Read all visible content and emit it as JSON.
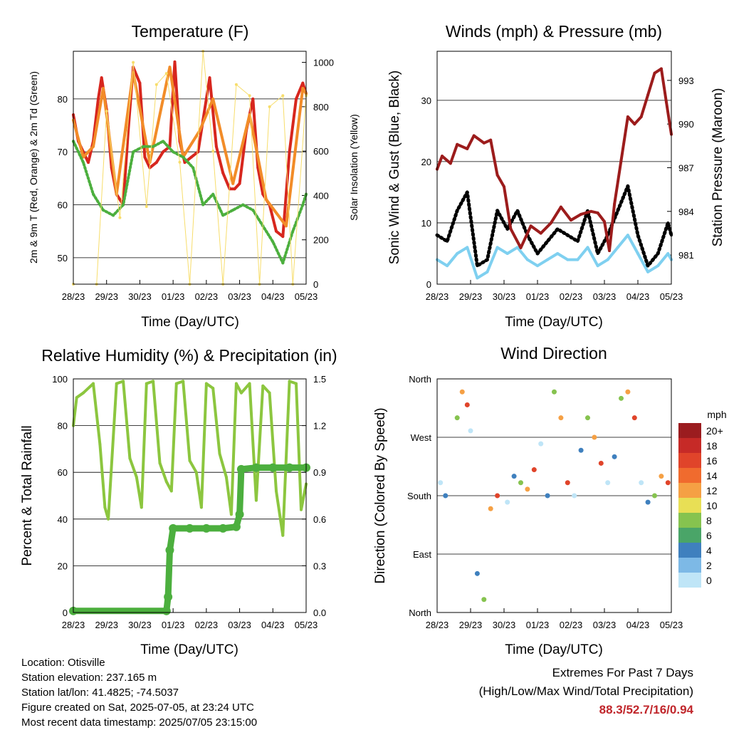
{
  "chart_data": [
    {
      "type": "line",
      "title": "Temperature (F)",
      "xlabel": "Time (Day/UTC)",
      "ylabel": "2m & 9m T (Red, Orange) & 2m Td (Green)",
      "y2label": "Solar Insolation (Yellow)",
      "xticks": [
        "28/23",
        "29/23",
        "30/23",
        "01/23",
        "02/23",
        "03/23",
        "04/23",
        "05/23"
      ],
      "ylim": [
        45,
        89
      ],
      "yticks": [
        50,
        60,
        70,
        80
      ],
      "y2lim": [
        0,
        1050
      ],
      "y2ticks": [
        0,
        200,
        400,
        600,
        800,
        1000
      ],
      "series": [
        {
          "color": "#d7261e",
          "x": [
            0,
            0.15,
            0.3,
            0.45,
            0.6,
            0.75,
            0.85,
            1.0,
            1.15,
            1.3,
            1.5,
            1.65,
            1.8,
            2.0,
            2.15,
            2.3,
            2.5,
            2.7,
            2.9,
            3.05,
            3.2,
            3.35,
            3.55,
            3.75,
            3.9,
            4.1,
            4.3,
            4.5,
            4.7,
            4.85,
            5.0,
            5.2,
            5.4,
            5.55,
            5.7,
            5.9,
            6.1,
            6.3,
            6.5,
            6.7,
            6.9,
            7.0
          ],
          "values": [
            77,
            72,
            70,
            68,
            72,
            80,
            84,
            78,
            67,
            62,
            60,
            74,
            86,
            83,
            69,
            67,
            68,
            70,
            71,
            87,
            72,
            68,
            69,
            70,
            76,
            84,
            71,
            66,
            63,
            63,
            64,
            74,
            80,
            67,
            62,
            60,
            55,
            54,
            70,
            80,
            83,
            81
          ]
        },
        {
          "color": "#f28c28",
          "x": [
            0,
            0.3,
            0.6,
            0.9,
            1.3,
            1.8,
            2.3,
            2.9,
            3.3,
            3.8,
            4.2,
            4.8,
            5.3,
            5.8,
            6.4,
            6.9,
            7.0
          ],
          "values": [
            76,
            69,
            71,
            82,
            62,
            85,
            68,
            86,
            69,
            74,
            80,
            64,
            77,
            61,
            56,
            82,
            81
          ]
        },
        {
          "color": "#4caf3e",
          "x": [
            0,
            0.3,
            0.6,
            0.9,
            1.2,
            1.5,
            1.8,
            2.1,
            2.4,
            2.7,
            3.0,
            3.3,
            3.6,
            3.9,
            4.2,
            4.5,
            4.8,
            5.1,
            5.4,
            5.7,
            6.0,
            6.3,
            6.6,
            6.9,
            7.0
          ],
          "values": [
            72,
            68,
            62,
            59,
            58,
            60,
            70,
            71,
            71,
            72,
            70,
            69,
            67,
            60,
            62,
            58,
            59,
            60,
            59,
            56,
            53,
            49,
            55,
            60,
            62
          ]
        },
        {
          "color": "#f7dd6b",
          "x": [
            0,
            0.7,
            1.0,
            1.4,
            1.8,
            2.2,
            2.5,
            2.8,
            3.2,
            3.5,
            3.9,
            4.2,
            4.5,
            4.9,
            5.3,
            5.6,
            5.9,
            6.3,
            6.6,
            7.0
          ],
          "values": [
            0,
            0,
            780,
            300,
            1000,
            350,
            900,
            950,
            550,
            0,
            1050,
            600,
            0,
            900,
            850,
            0,
            800,
            850,
            0,
            850
          ]
        }
      ]
    },
    {
      "type": "line",
      "title": "Winds (mph) & Pressure (mb)",
      "xlabel": "Time (Day/UTC)",
      "ylabel": "Sonic Wind & Gust (Blue, Black)",
      "y2label": "Station Pressure (Maroon)",
      "xticks": [
        "28/23",
        "29/23",
        "30/23",
        "01/23",
        "02/23",
        "03/23",
        "04/23",
        "05/23"
      ],
      "ylim": [
        0,
        38
      ],
      "yticks": [
        0,
        10,
        20,
        30
      ],
      "y2lim": [
        979,
        995
      ],
      "y2ticks": [
        981,
        984,
        987,
        990,
        993
      ],
      "series": [
        {
          "color": "#7fd0f0",
          "x": [
            0,
            0.3,
            0.6,
            0.9,
            1.2,
            1.5,
            1.8,
            2.1,
            2.4,
            2.7,
            3.0,
            3.3,
            3.6,
            3.9,
            4.2,
            4.5,
            4.8,
            5.1,
            5.4,
            5.7,
            6.0,
            6.3,
            6.6,
            6.9,
            7.0
          ],
          "values": [
            4,
            3,
            5,
            6,
            1,
            2,
            6,
            5,
            6,
            4,
            3,
            4,
            5,
            4,
            4,
            6,
            3,
            4,
            6,
            8,
            5,
            2,
            3,
            5,
            4
          ]
        },
        {
          "color": "#000000",
          "x": [
            0,
            0.3,
            0.6,
            0.9,
            1.2,
            1.5,
            1.8,
            2.1,
            2.4,
            2.7,
            3.0,
            3.3,
            3.6,
            3.9,
            4.2,
            4.5,
            4.8,
            5.1,
            5.4,
            5.7,
            6.0,
            6.3,
            6.6,
            6.9,
            7.0
          ],
          "values": [
            8,
            7,
            12,
            15,
            3,
            4,
            12,
            9,
            12,
            8,
            5,
            7,
            9,
            8,
            7,
            12,
            5,
            8,
            12,
            16,
            8,
            3,
            5,
            10,
            8
          ]
        },
        {
          "color": "#9c1c1c",
          "x": [
            0,
            0.15,
            0.4,
            0.6,
            0.9,
            1.1,
            1.4,
            1.6,
            1.8,
            2.0,
            2.2,
            2.5,
            2.8,
            3.1,
            3.4,
            3.7,
            4.0,
            4.3,
            4.6,
            4.8,
            5.0,
            5.15,
            5.3,
            5.5,
            5.7,
            5.9,
            6.1,
            6.3,
            6.5,
            6.7,
            6.85,
            7.0
          ],
          "values": [
            986.9,
            987.8,
            987.3,
            988.6,
            988.3,
            989.2,
            988.7,
            988.9,
            986.5,
            985.7,
            982.8,
            981.5,
            983.0,
            982.5,
            983.2,
            984.3,
            983.4,
            983.8,
            984.0,
            983.9,
            983.3,
            981.3,
            984.5,
            987.5,
            990.5,
            990.0,
            990.5,
            992.0,
            993.5,
            993.8,
            991.5,
            989.3
          ]
        }
      ]
    },
    {
      "type": "line",
      "title": "Relative Humidity (%) & Precipitation (in)",
      "xlabel": "Time (Day/UTC)",
      "ylabel": "Percent & Total Rainfall",
      "xticks": [
        "28/23",
        "29/23",
        "30/23",
        "01/23",
        "02/23",
        "03/23",
        "04/23",
        "05/23"
      ],
      "ylim": [
        0,
        100
      ],
      "yticks": [
        0,
        20,
        40,
        60,
        80,
        100
      ],
      "y2lim": [
        0,
        1.5
      ],
      "y2ticks": [
        "0.0",
        "0.3",
        "0.6",
        "0.9",
        "1.2",
        "1.5"
      ],
      "series": [
        {
          "color": "#8cc63f",
          "x": [
            0,
            0.1,
            0.3,
            0.6,
            0.8,
            0.95,
            1.05,
            1.3,
            1.5,
            1.7,
            1.9,
            2.05,
            2.2,
            2.4,
            2.6,
            2.8,
            2.95,
            3.1,
            3.3,
            3.5,
            3.7,
            3.85,
            4.0,
            4.2,
            4.4,
            4.6,
            4.75,
            4.9,
            5.05,
            5.3,
            5.5,
            5.7,
            5.9,
            6.1,
            6.3,
            6.5,
            6.7,
            6.85,
            7.0
          ],
          "values": [
            80,
            92,
            94,
            98,
            72,
            45,
            40,
            98,
            99,
            66,
            58,
            45,
            98,
            99,
            64,
            56,
            52,
            98,
            99,
            65,
            60,
            45,
            98,
            96,
            68,
            58,
            42,
            98,
            94,
            98,
            48,
            97,
            94,
            52,
            33,
            99,
            98,
            44,
            55
          ]
        },
        {
          "color": "#4caf3e",
          "x": [
            0,
            2.8,
            2.85,
            2.9,
            3.0,
            3.5,
            4.0,
            4.5,
            4.9,
            5.0,
            5.05,
            5.5,
            6.0,
            6.5,
            7.0
          ],
          "values": [
            0.01,
            0.01,
            0.1,
            0.4,
            0.54,
            0.54,
            0.54,
            0.54,
            0.55,
            0.63,
            0.92,
            0.93,
            0.93,
            0.93,
            0.93
          ]
        }
      ]
    },
    {
      "type": "scatter",
      "title": "Wind Direction",
      "xlabel": "Time (Day/UTC)",
      "ylabel": "Direction (Colored By Speed)",
      "xticks": [
        "28/23",
        "29/23",
        "30/23",
        "01/23",
        "02/23",
        "03/23",
        "04/23",
        "05/23"
      ],
      "yticks": [
        "North",
        "East",
        "South",
        "West",
        "North"
      ],
      "ylim": [
        0,
        360
      ],
      "legend": {
        "title": "mph",
        "labels": [
          "20+",
          "18",
          "16",
          "14",
          "12",
          "10",
          "8",
          "6",
          "4",
          "2",
          "0"
        ],
        "colors": [
          "#9b1c1f",
          "#c62a27",
          "#e0442a",
          "#f06b2e",
          "#f5a044",
          "#e8df55",
          "#86c34f",
          "#4aa568",
          "#3f80be",
          "#7db9e6",
          "#bfe5f7"
        ]
      },
      "points": [
        {
          "x": 0.1,
          "dir": 200
        },
        {
          "x": 0.25,
          "dir": 180
        },
        {
          "x": 0.6,
          "dir": 300
        },
        {
          "x": 0.75,
          "dir": 340
        },
        {
          "x": 0.9,
          "dir": 320
        },
        {
          "x": 1.0,
          "dir": 280
        },
        {
          "x": 1.2,
          "dir": 60
        },
        {
          "x": 1.4,
          "dir": 20
        },
        {
          "x": 1.6,
          "dir": 160
        },
        {
          "x": 1.8,
          "dir": 180
        },
        {
          "x": 2.1,
          "dir": 170
        },
        {
          "x": 2.3,
          "dir": 210
        },
        {
          "x": 2.5,
          "dir": 200
        },
        {
          "x": 2.7,
          "dir": 190
        },
        {
          "x": 2.9,
          "dir": 220
        },
        {
          "x": 3.1,
          "dir": 260
        },
        {
          "x": 3.3,
          "dir": 180
        },
        {
          "x": 3.5,
          "dir": 340
        },
        {
          "x": 3.7,
          "dir": 300
        },
        {
          "x": 3.9,
          "dir": 200
        },
        {
          "x": 4.1,
          "dir": 180
        },
        {
          "x": 4.3,
          "dir": 250
        },
        {
          "x": 4.5,
          "dir": 300
        },
        {
          "x": 4.7,
          "dir": 270
        },
        {
          "x": 4.9,
          "dir": 230
        },
        {
          "x": 5.1,
          "dir": 200
        },
        {
          "x": 5.3,
          "dir": 240
        },
        {
          "x": 5.5,
          "dir": 330
        },
        {
          "x": 5.7,
          "dir": 340
        },
        {
          "x": 5.9,
          "dir": 300
        },
        {
          "x": 6.1,
          "dir": 200
        },
        {
          "x": 6.3,
          "dir": 170
        },
        {
          "x": 6.5,
          "dir": 180
        },
        {
          "x": 6.7,
          "dir": 210
        },
        {
          "x": 6.9,
          "dir": 200
        }
      ]
    }
  ],
  "info": {
    "location": "Location: Otisville",
    "elevation": "Station elevation: 237.165 m",
    "latlon": "Station lat/lon: 41.4825; -74.5037",
    "created": "Figure created on Sat, 2025-07-05, at 23:24 UTC",
    "recent": "Most recent data timestamp: 2025/07/05 23:15:00"
  },
  "extremes": {
    "line1": "Extremes For Past 7 Days",
    "line2": "(High/Low/Max Wind/Total Precipitation)",
    "values": "88.3/52.7/16/0.94"
  }
}
